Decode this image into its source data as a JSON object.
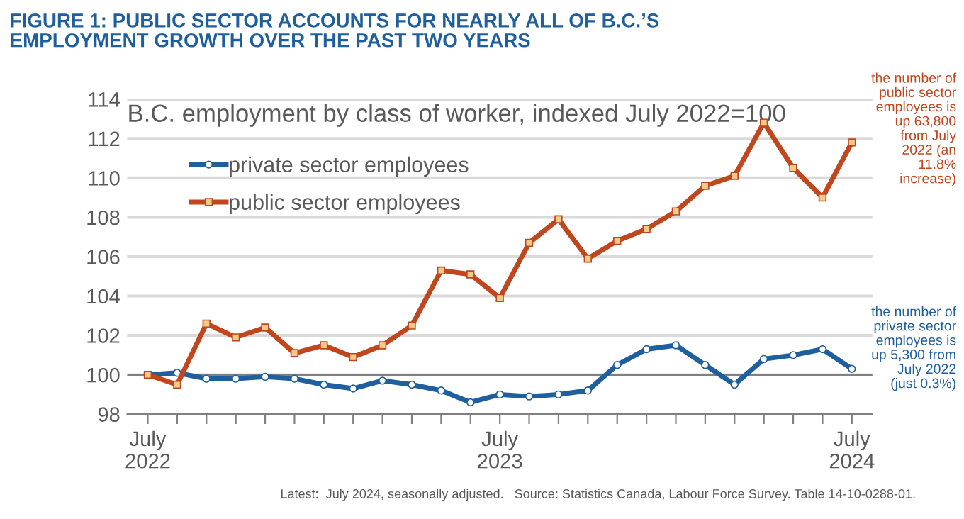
{
  "chart_data": {
    "type": "line",
    "title": "FIGURE 1: PUBLIC SECTOR ACCOUNTS FOR NEARLY ALL OF B.C.’S\nEMPLOYMENT GROWTH OVER THE PAST TWO YEARS",
    "subtitle": "B.C. employment by class of worker, indexed July 2022=100",
    "categories": [
      "July\n2022",
      null,
      null,
      null,
      null,
      null,
      null,
      null,
      null,
      null,
      null,
      null,
      "July\n2023",
      null,
      null,
      null,
      null,
      null,
      null,
      null,
      null,
      null,
      null,
      null,
      "July\n2024"
    ],
    "series": [
      {
        "name": "private sector employees",
        "color": "#1f5f9e",
        "marker": "circle",
        "values": [
          100,
          100.1,
          99.8,
          99.8,
          99.9,
          99.8,
          99.5,
          99.3,
          99.7,
          99.5,
          99.2,
          98.6,
          99.0,
          98.9,
          99.0,
          99.2,
          100.5,
          101.3,
          101.5,
          100.5,
          99.5,
          100.8,
          101.0,
          101.3,
          100.3
        ]
      },
      {
        "name": "public sector employees",
        "color": "#c0461e",
        "marker": "square",
        "values": [
          100,
          99.5,
          102.6,
          101.9,
          102.4,
          101.1,
          101.5,
          100.9,
          101.5,
          102.5,
          105.3,
          105.1,
          103.9,
          106.7,
          107.9,
          105.9,
          106.8,
          107.4,
          108.3,
          109.6,
          110.1,
          112.8,
          110.5,
          109.0,
          111.8
        ]
      }
    ],
    "ylim": [
      98,
      114
    ],
    "yticks": [
      98,
      100,
      102,
      104,
      106,
      108,
      110,
      112,
      114
    ],
    "ref_lines": [
      {
        "axis": "y",
        "value": 100,
        "color": "#808080"
      }
    ],
    "grid": "y",
    "legend": "top left",
    "line_style": "solid",
    "annotations": [
      "the number of\npublic sector\nemployees is\nup 63,800\nfrom July\n2022 (an\n11.8%\nincrease)",
      "the number of\nprivate sector\nemployees is\nup 5,300 from\nJuly 2022\n(just 0.3%)",
      "Latest:  July 2024, seasonally adjusted.   Source: Statistics Canada, Labour Force Survey. Table 14-10-0288-01."
    ]
  }
}
